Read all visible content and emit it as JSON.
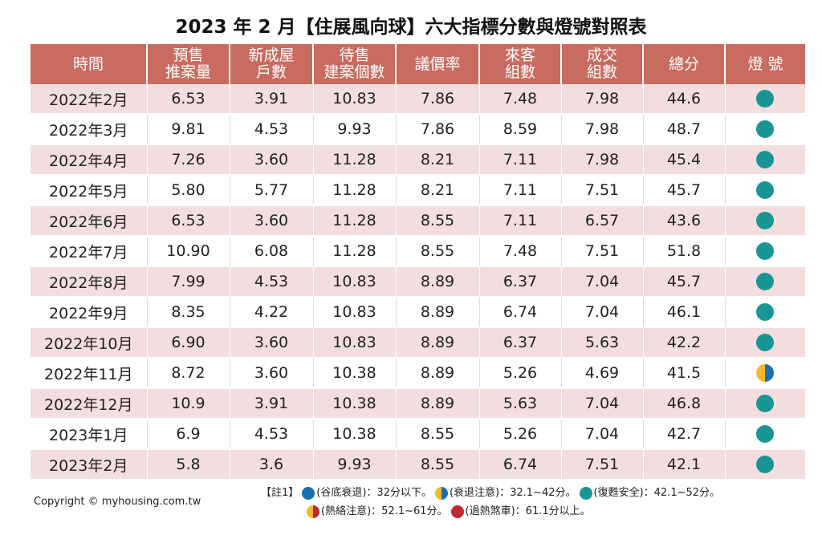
{
  "title": "2023 年 2 月【住展風向球】六大指標分數與燈號對照表",
  "colors": {
    "header": "#c96b5f",
    "row_alt": "#f2dede",
    "blue": "#1a6fb0",
    "yellow": "#f2b92c",
    "teal": "#1a9595",
    "red": "#c0282f"
  },
  "headers": [
    "時間",
    "預售\n推案量",
    "新成屋\n戶數",
    "待售\n建案個數",
    "議價率",
    "來客\n組數",
    "成交\n組數",
    "總分",
    "燈 號"
  ],
  "rows": [
    {
      "cells": [
        "2022年2月",
        "6.53",
        "3.91",
        "10.83",
        "7.86",
        "7.48",
        "7.98",
        "44.6"
      ],
      "light": "teal"
    },
    {
      "cells": [
        "2022年3月",
        "9.81",
        "4.53",
        "9.93",
        "7.86",
        "8.59",
        "7.98",
        "48.7"
      ],
      "light": "teal"
    },
    {
      "cells": [
        "2022年4月",
        "7.26",
        "3.60",
        "11.28",
        "8.21",
        "7.11",
        "7.98",
        "45.4"
      ],
      "light": "teal"
    },
    {
      "cells": [
        "2022年5月",
        "5.80",
        "5.77",
        "11.28",
        "8.21",
        "7.11",
        "7.51",
        "45.7"
      ],
      "light": "teal"
    },
    {
      "cells": [
        "2022年6月",
        "6.53",
        "3.60",
        "11.28",
        "8.55",
        "7.11",
        "6.57",
        "43.6"
      ],
      "light": "teal"
    },
    {
      "cells": [
        "2022年7月",
        "10.90",
        "6.08",
        "11.28",
        "8.55",
        "7.48",
        "7.51",
        "51.8"
      ],
      "light": "teal"
    },
    {
      "cells": [
        "2022年8月",
        "7.99",
        "4.53",
        "10.83",
        "8.89",
        "6.37",
        "7.04",
        "45.7"
      ],
      "light": "teal"
    },
    {
      "cells": [
        "2022年9月",
        "8.35",
        "4.22",
        "10.83",
        "8.89",
        "6.74",
        "7.04",
        "46.1"
      ],
      "light": "teal"
    },
    {
      "cells": [
        "2022年10月",
        "6.90",
        "3.60",
        "10.83",
        "8.89",
        "6.37",
        "5.63",
        "42.2"
      ],
      "light": "teal"
    },
    {
      "cells": [
        "2022年11月",
        "8.72",
        "3.60",
        "10.38",
        "8.89",
        "5.26",
        "4.69",
        "41.5"
      ],
      "light": "yellow-blue"
    },
    {
      "cells": [
        "2022年12月",
        "10.9",
        "3.91",
        "10.38",
        "8.89",
        "5.63",
        "7.04",
        "46.8"
      ],
      "light": "teal"
    },
    {
      "cells": [
        "2023年1月",
        "6.9",
        "4.53",
        "10.38",
        "8.55",
        "5.26",
        "7.04",
        "42.7"
      ],
      "light": "teal"
    },
    {
      "cells": [
        "2023年2月",
        "5.8",
        "3.6",
        "9.93",
        "8.55",
        "6.74",
        "7.51",
        "42.1"
      ],
      "light": "teal"
    }
  ],
  "copyright": "Copyright © myhousing.com.tw",
  "notes": {
    "label": "【註1】",
    "line1": [
      {
        "light": "blue",
        "text": "(谷底衰退)：32分以下。"
      },
      {
        "light": "yellow-blue",
        "text": "(衰退注意)：32.1~42分。"
      },
      {
        "light": "teal",
        "text": "(復甦安全)：42.1~52分。"
      }
    ],
    "line2": [
      {
        "light": "yellow-red",
        "text": "(熱絡注意)：52.1~61分。"
      },
      {
        "light": "red",
        "text": "(過熱煞車)：61.1分以上。"
      }
    ]
  }
}
